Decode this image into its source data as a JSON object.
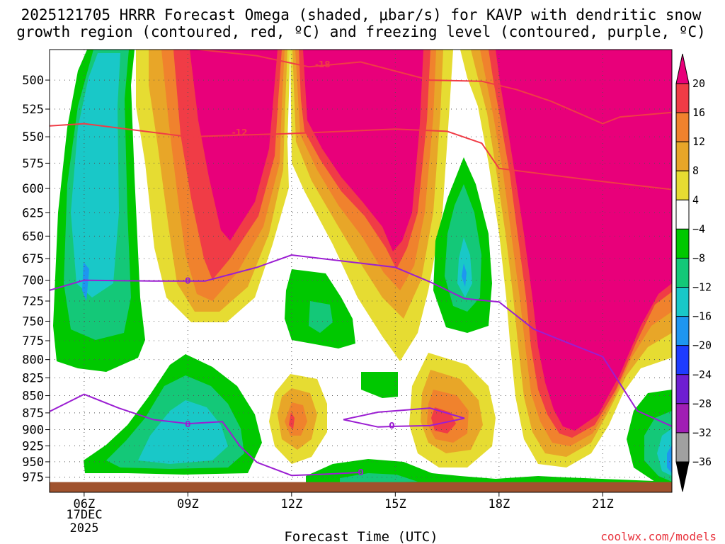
{
  "title": {
    "line1": "2025121705 HRRR Forecast Omega (shaded, μbar/s) for KAVP with dendritic snow",
    "line2": "growth region (contoured, red, ºC) and freezing level (contoured, purple, ºC)"
  },
  "credit": "coolwx.com/models",
  "chart_data": {
    "type": "heatmap",
    "title": "2025121705 HRRR Forecast Omega (shaded, μbar/s) for KAVP with dendritic snow growth region (contoured, red, ºC) and freezing level (contoured, purple, ºC)",
    "xlabel": "Forecast Time (UTC)",
    "ylabel": "",
    "x_ticks": [
      "06Z",
      "09Z",
      "12Z",
      "15Z",
      "18Z",
      "21Z"
    ],
    "x_tick_hours": [
      6,
      9,
      12,
      15,
      18,
      21
    ],
    "x_date_label": [
      "17DEC",
      "2025"
    ],
    "xlim": [
      5,
      23
    ],
    "y_ticks": [
      500,
      525,
      550,
      575,
      600,
      625,
      650,
      675,
      700,
      725,
      750,
      775,
      800,
      825,
      850,
      875,
      900,
      925,
      950,
      975
    ],
    "ylim": [
      1000,
      475
    ],
    "y_scale": "log",
    "grid": true,
    "colorbar": {
      "unit": "μbar/s",
      "levels": [
        -36,
        -32,
        -28,
        -24,
        -20,
        -16,
        -12,
        -8,
        -4,
        4,
        8,
        12,
        16,
        20
      ],
      "labels": [
        "20",
        "16",
        "12",
        "8",
        "4",
        "−4",
        "−8",
        "−12",
        "−16",
        "−20",
        "−24",
        "−28",
        "−32",
        "−36"
      ],
      "colors": {
        "gt20": "#e8007a",
        "16_20": "#f03c46",
        "12_16": "#f0822d",
        "8_12": "#e8a628",
        "4_8": "#e6dc32",
        "m4_4": "#ffffff",
        "m8_m4": "#00c800",
        "m12_m8": "#14c878",
        "m16_m12": "#19c8c8",
        "m20_m16": "#1e96f0",
        "m24_m20": "#1e3cff",
        "m28_m24": "#6e1ed2",
        "m32_m28": "#a01eb4",
        "m36_m32": "#a0a0a0",
        "lt_m36": "#000000"
      }
    },
    "contours": {
      "dendritic_growth": {
        "color": "#f03c46",
        "levels": [
          -12,
          -18
        ],
        "series": [
          {
            "name": "-12",
            "x": [
              5,
              6,
              9,
              12,
              15,
              16.5,
              17.5,
              18,
              21,
              23
            ],
            "y": [
              540,
              538,
              550,
              547,
              543,
              545,
              556,
              580,
              593,
              601
            ]
          },
          {
            "name": "-18",
            "x": [
              9,
              11,
              12.5,
              14,
              16,
              17.5,
              18.5,
              19.5,
              21,
              21.5,
              23
            ],
            "y": [
              474,
              480,
              489,
              485,
              500,
              501,
              508,
              518,
              538,
              532,
              528
            ]
          }
        ]
      },
      "freezing_level": {
        "color": "#9b1ed2",
        "level": 0,
        "series": [
          {
            "name": "0 upper",
            "x": [
              5,
              6,
              8,
              9.5,
              11,
              12,
              15,
              16,
              17,
              18,
              19,
              20,
              21,
              22,
              23
            ],
            "y": [
              712,
              700,
              701,
              701,
              685,
              671,
              685,
              702,
              722,
              726,
              760,
              778,
              796,
              872,
              895
            ]
          },
          {
            "name": "0 lower",
            "x": [
              5,
              6,
              7,
              8,
              9,
              10,
              10.5,
              11,
              12,
              13,
              14
            ],
            "y": [
              873,
              848,
              868,
              885,
              891,
              888,
              925,
              951,
              972,
              970,
              967
            ]
          },
          {
            "name": "0 loop",
            "x": [
              13.5,
              14.5,
              15,
              16,
              17,
              16,
              15,
              14.5,
              13.5
            ],
            "y": [
              885,
              874,
              872,
              868,
              883,
              894,
              895,
              896,
              885
            ]
          }
        ],
        "label": "0"
      }
    },
    "terrain_surface_hpa": 983
  }
}
